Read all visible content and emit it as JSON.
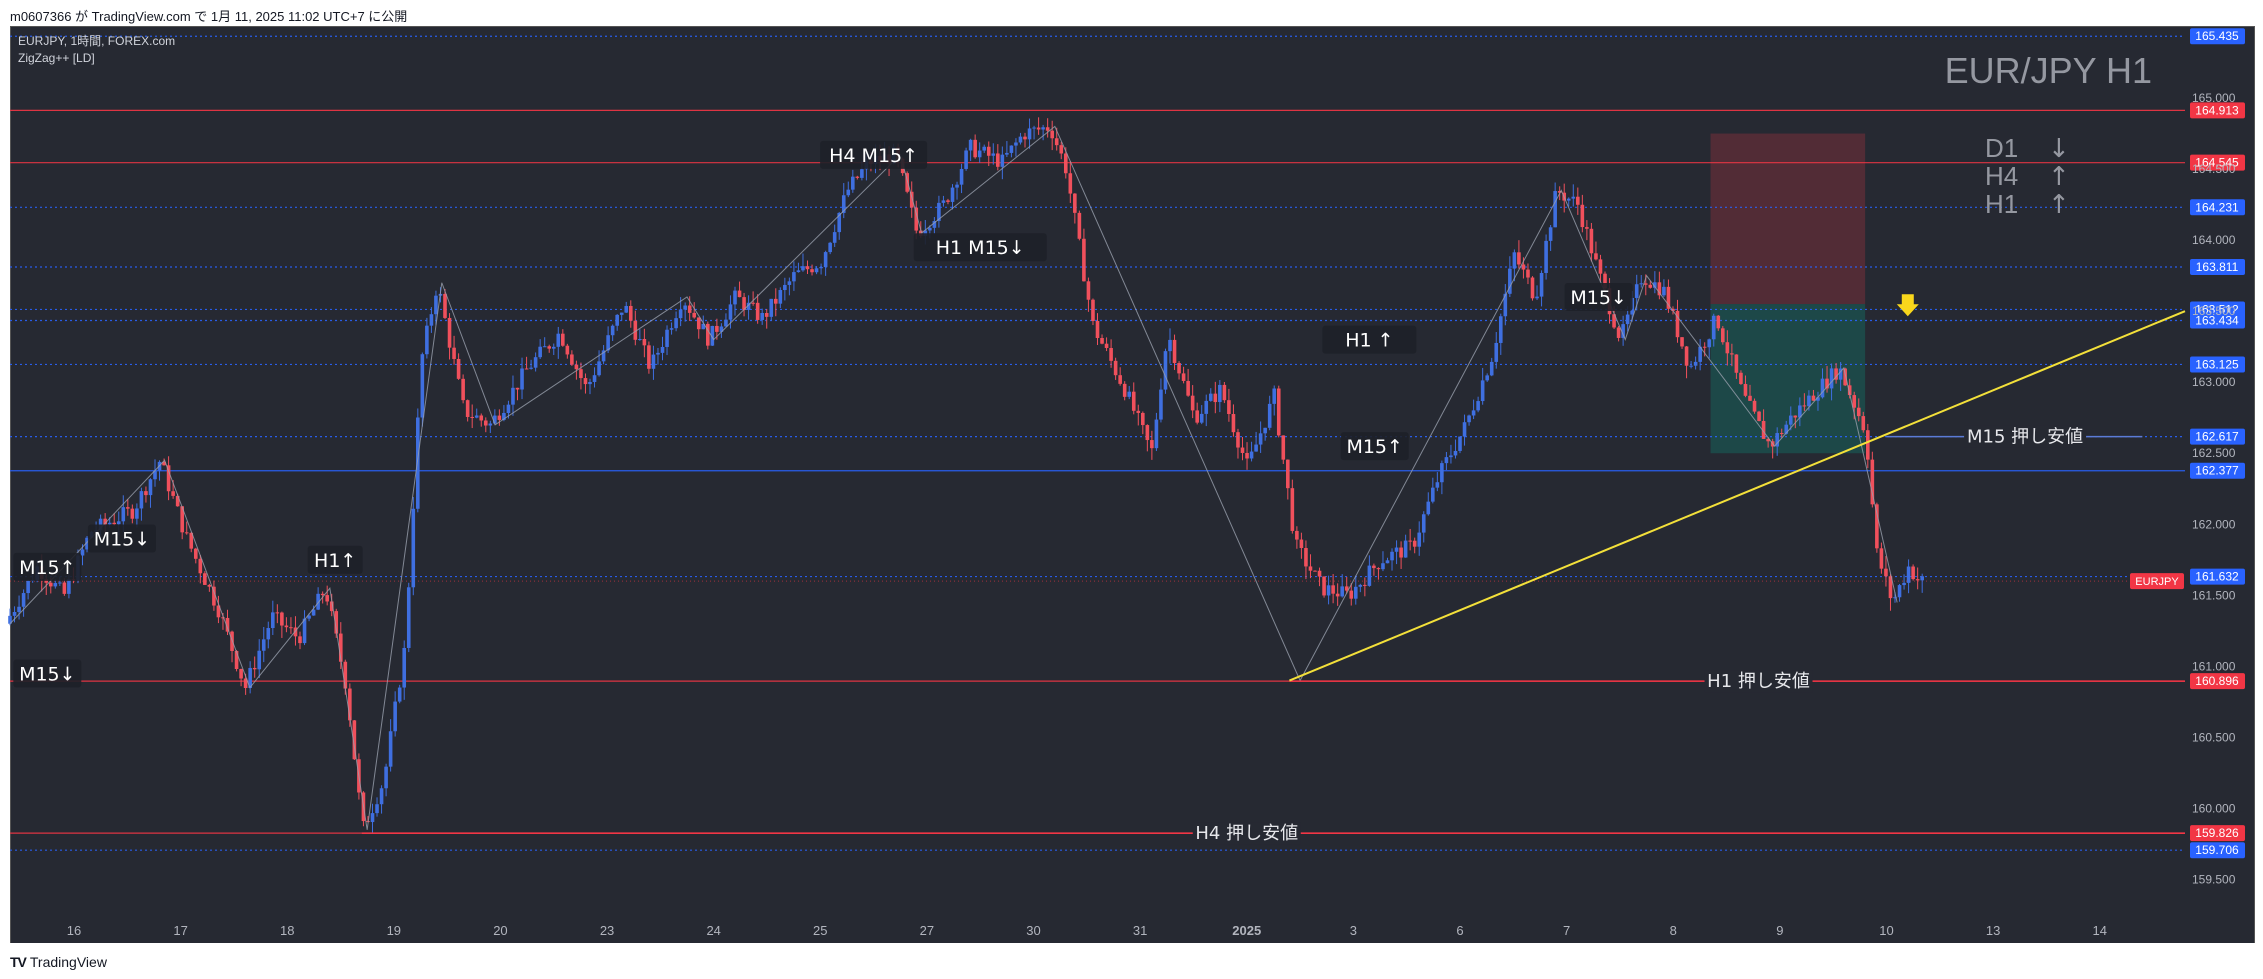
{
  "header": {
    "published": "m0607366 が TradingView.com で 1月 11, 2025 11:02 UTC+7 に公開"
  },
  "legend": {
    "symbol_line": "EURJPY, 1時間, FOREX.com",
    "indicator": "ZigZag++ [LD]"
  },
  "watermark": "EUR/JPY H1",
  "trend_panel": [
    {
      "tf": "D1",
      "dir": "↓"
    },
    {
      "tf": "H4",
      "dir": "↑"
    },
    {
      "tf": "H1",
      "dir": "↑"
    }
  ],
  "footer": {
    "brand": "TradingView",
    "logo": "TV"
  },
  "colors": {
    "bg": "#262932",
    "up": "#3f6fe0",
    "down": "#f0505c",
    "trendline": "#f3e03a",
    "tag_red": "#f23645",
    "tag_blue": "#2962ff"
  },
  "chart_data": {
    "type": "candlestick",
    "symbol": "EURJPY",
    "timeframe": "1時間",
    "ylim": [
      159.25,
      165.5
    ],
    "yticks": [
      "159.500",
      "160.000",
      "160.500",
      "161.000",
      "161.500",
      "162.000",
      "162.500",
      "163.000",
      "163.500",
      "164.000",
      "164.500",
      "165.000"
    ],
    "xticks": [
      {
        "label": "16",
        "x": 0.6
      },
      {
        "label": "17",
        "x": 1.6
      },
      {
        "label": "18",
        "x": 2.6
      },
      {
        "label": "19",
        "x": 3.6
      },
      {
        "label": "20",
        "x": 4.6
      },
      {
        "label": "23",
        "x": 5.6
      },
      {
        "label": "24",
        "x": 6.6
      },
      {
        "label": "25",
        "x": 7.6
      },
      {
        "label": "27",
        "x": 8.6
      },
      {
        "label": "30",
        "x": 9.6
      },
      {
        "label": "31",
        "x": 10.6
      },
      {
        "label": "2025",
        "x": 11.6
      },
      {
        "label": "3",
        "x": 12.6
      },
      {
        "label": "6",
        "x": 13.6
      },
      {
        "label": "7",
        "x": 14.6
      },
      {
        "label": "8",
        "x": 15.6
      },
      {
        "label": "9",
        "x": 16.6
      },
      {
        "label": "10",
        "x": 17.6
      },
      {
        "label": "13",
        "x": 18.6
      },
      {
        "label": "14",
        "x": 19.6
      }
    ],
    "xlim": [
      0,
      20.4
    ],
    "price_waypoints": [
      [
        0,
        161.3
      ],
      [
        0.3,
        161.7
      ],
      [
        0.55,
        161.5
      ],
      [
        0.8,
        161.95
      ],
      [
        1.2,
        162.1
      ],
      [
        1.45,
        162.45
      ],
      [
        1.7,
        161.9
      ],
      [
        2.0,
        161.4
      ],
      [
        2.25,
        160.85
      ],
      [
        2.5,
        161.35
      ],
      [
        2.75,
        161.2
      ],
      [
        3.0,
        161.55
      ],
      [
        3.2,
        160.85
      ],
      [
        3.35,
        159.85
      ],
      [
        3.55,
        160.2
      ],
      [
        3.75,
        161.15
      ],
      [
        3.9,
        163.15
      ],
      [
        4.05,
        163.7
      ],
      [
        4.3,
        162.8
      ],
      [
        4.55,
        162.7
      ],
      [
        4.9,
        163.1
      ],
      [
        5.2,
        163.35
      ],
      [
        5.45,
        162.95
      ],
      [
        5.8,
        163.55
      ],
      [
        6.05,
        163.1
      ],
      [
        6.35,
        163.6
      ],
      [
        6.6,
        163.3
      ],
      [
        6.85,
        163.6
      ],
      [
        7.1,
        163.45
      ],
      [
        7.4,
        163.75
      ],
      [
        7.65,
        163.85
      ],
      [
        7.9,
        164.35
      ],
      [
        8.1,
        164.55
      ],
      [
        8.35,
        164.6
      ],
      [
        8.55,
        164.05
      ],
      [
        8.8,
        164.25
      ],
      [
        9.05,
        164.65
      ],
      [
        9.35,
        164.55
      ],
      [
        9.55,
        164.75
      ],
      [
        9.8,
        164.8
      ],
      [
        9.95,
        164.5
      ],
      [
        10.05,
        164.05
      ],
      [
        10.2,
        163.4
      ],
      [
        10.5,
        162.95
      ],
      [
        10.75,
        162.5
      ],
      [
        10.9,
        163.35
      ],
      [
        11.15,
        162.75
      ],
      [
        11.4,
        162.95
      ],
      [
        11.65,
        162.4
      ],
      [
        11.9,
        162.9
      ],
      [
        12.1,
        161.85
      ],
      [
        12.35,
        161.55
      ],
      [
        12.6,
        161.5
      ],
      [
        12.9,
        161.75
      ],
      [
        13.2,
        161.85
      ],
      [
        13.45,
        162.35
      ],
      [
        13.7,
        162.7
      ],
      [
        13.95,
        163.2
      ],
      [
        14.15,
        163.9
      ],
      [
        14.35,
        163.6
      ],
      [
        14.55,
        164.35
      ],
      [
        14.75,
        164.25
      ],
      [
        14.95,
        163.75
      ],
      [
        15.15,
        163.3
      ],
      [
        15.35,
        163.75
      ],
      [
        15.55,
        163.65
      ],
      [
        15.8,
        163.1
      ],
      [
        16.05,
        163.45
      ],
      [
        16.3,
        162.9
      ],
      [
        16.55,
        162.55
      ],
      [
        16.75,
        162.75
      ],
      [
        17.0,
        162.95
      ],
      [
        17.2,
        163.1
      ],
      [
        17.45,
        162.65
      ],
      [
        17.55,
        161.8
      ],
      [
        17.7,
        161.45
      ],
      [
        17.85,
        161.7
      ],
      [
        17.95,
        161.6
      ]
    ],
    "horizontal_levels": [
      {
        "price": "165.435",
        "tag_color": "blue",
        "style": "dotted"
      },
      {
        "price": "164.913",
        "tag_color": "red",
        "style": "solid"
      },
      {
        "price": "164.545",
        "tag_color": "red",
        "style": "solid"
      },
      {
        "price": "164.231",
        "tag_color": "blue",
        "style": "dotted"
      },
      {
        "price": "163.811",
        "tag_color": "blue",
        "style": "dotted"
      },
      {
        "price": "163.512",
        "tag_color": "blue",
        "style": "dotted"
      },
      {
        "price": "163.434",
        "tag_color": "blue",
        "style": "dotted"
      },
      {
        "price": "163.125",
        "tag_color": "blue",
        "style": "dotted"
      },
      {
        "price": "162.617",
        "tag_color": "blue",
        "style": "dotted"
      },
      {
        "price": "162.377",
        "tag_color": "blue",
        "style": "solid"
      },
      {
        "price": "161.632",
        "tag_color": "blue",
        "style": "dotted"
      },
      {
        "price": "160.896",
        "tag_color": "red",
        "style": "solid"
      },
      {
        "price": "159.826",
        "tag_color": "red",
        "style": "solid"
      },
      {
        "price": "159.706",
        "tag_color": "blue",
        "style": "dotted"
      }
    ],
    "current_price_tag": "EURJPY",
    "labeled_lines": [
      {
        "text": "H4 押し安値",
        "price": 159.826,
        "x0": 3.3,
        "x1": 20.4,
        "label_x": 11.6
      },
      {
        "text": "H1 押し安値",
        "price": 160.896,
        "x0": 12.0,
        "x1": 20.4,
        "label_x": 16.4
      },
      {
        "text": "M15 押し安値",
        "price": 162.617,
        "x0": 17.6,
        "x1": 20.0,
        "label_x": 18.9
      }
    ],
    "trendline": {
      "x0": 12.0,
      "y0": 160.9,
      "x1": 20.4,
      "y1": 163.5
    },
    "position_box": {
      "x0": 15.95,
      "x1": 17.4,
      "entry": 163.55,
      "stop": 164.75,
      "target": 162.5
    },
    "arrow_marker": {
      "x": 17.8,
      "price": 163.45
    },
    "annotations": [
      {
        "text": "M15↑",
        "x": 0.35,
        "price": 161.7
      },
      {
        "text": "M15↓",
        "x": 0.35,
        "price": 160.95
      },
      {
        "text": "M15↓",
        "x": 1.05,
        "price": 161.9
      },
      {
        "text": "H1↑",
        "x": 3.05,
        "price": 161.75
      },
      {
        "text": "H4 M15↑",
        "x": 8.1,
        "price": 164.6
      },
      {
        "text": "H1   M15↓",
        "x": 9.1,
        "price": 163.95
      },
      {
        "text": "H1   ↑",
        "x": 12.75,
        "price": 163.3
      },
      {
        "text": "M15↑",
        "x": 12.8,
        "price": 162.55
      },
      {
        "text": "M15↓",
        "x": 14.9,
        "price": 163.6
      }
    ]
  }
}
